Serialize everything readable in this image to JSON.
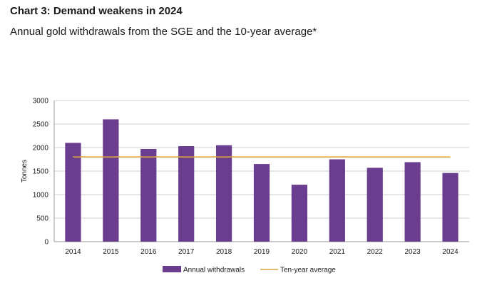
{
  "chart_data": {
    "type": "bar",
    "title": "Chart 3: Demand weakens in 2024",
    "subtitle": "Annual gold withdrawals from the SGE and the 10-year average*",
    "ylabel": "Tonnes",
    "xlabel": "",
    "ylim": [
      0,
      3000
    ],
    "yticks": [
      0,
      500,
      1000,
      1500,
      2000,
      2500,
      3000
    ],
    "grid": true,
    "categories": [
      "2014",
      "2015",
      "2016",
      "2017",
      "2018",
      "2019",
      "2020",
      "2021",
      "2022",
      "2023",
      "2024"
    ],
    "series": [
      {
        "name": "Annual withdrawals",
        "type": "bar",
        "color": "#6a3d8e",
        "values": [
          2100,
          2600,
          1970,
          2030,
          2050,
          1650,
          1210,
          1750,
          1570,
          1690,
          1460
        ]
      },
      {
        "name": "Ten-year average",
        "type": "line",
        "color": "#d9a441",
        "values": [
          1800,
          1800,
          1800,
          1800,
          1800,
          1800,
          1800,
          1800,
          1800,
          1800,
          1800
        ]
      }
    ],
    "legend_position": "bottom-center"
  }
}
